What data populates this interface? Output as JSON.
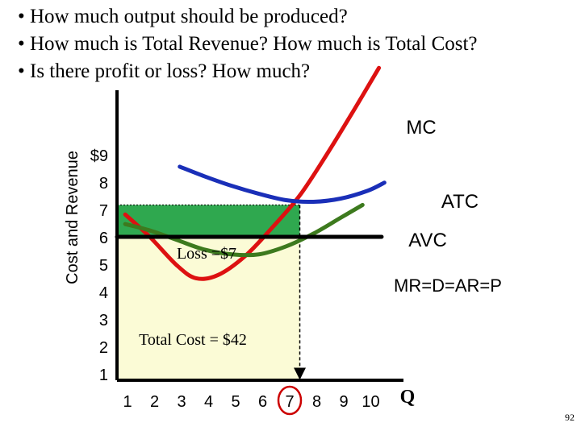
{
  "slide": {
    "bullets": [
      "• How much output should be produced?",
      "• How much is Total Revenue? How much is Total Cost?",
      "• Is there profit or loss? How much?"
    ],
    "page_number": "92"
  },
  "chart_data": {
    "type": "line",
    "ylabel": "Cost and Revenue",
    "xlabel": "Q",
    "x_ticks": [
      "1",
      "2",
      "3",
      "4",
      "5",
      "6",
      "7",
      "8",
      "9",
      "10"
    ],
    "y_ticks": [
      "$9",
      "8",
      "7",
      "6",
      "5",
      "4",
      "3",
      "2",
      "1"
    ],
    "xlim": [
      0.3,
      10.8
    ],
    "ylim": [
      0.5,
      9.6
    ],
    "optimal_quantity": 7,
    "price": 5,
    "series": [
      {
        "name": "MC",
        "color": "#dd1111",
        "points": [
          [
            0.6,
            5.7
          ],
          [
            1.5,
            5.0
          ],
          [
            2.5,
            4.1
          ],
          [
            3.2,
            3.7
          ],
          [
            4.0,
            3.8
          ],
          [
            5.0,
            4.4
          ],
          [
            6.0,
            5.3
          ],
          [
            7.0,
            6.3
          ],
          [
            8.0,
            7.6
          ],
          [
            9.0,
            9.0
          ],
          [
            9.9,
            10.3
          ]
        ]
      },
      {
        "name": "ATC",
        "color": "#1a2fb8",
        "points": [
          [
            2.6,
            7.2
          ],
          [
            3.5,
            6.9
          ],
          [
            4.5,
            6.6
          ],
          [
            5.5,
            6.35
          ],
          [
            6.5,
            6.15
          ],
          [
            7.5,
            6.1
          ],
          [
            8.5,
            6.2
          ],
          [
            9.5,
            6.45
          ],
          [
            10.1,
            6.7
          ]
        ]
      },
      {
        "name": "AVC",
        "color": "#3d7a1e",
        "points": [
          [
            0.6,
            5.4
          ],
          [
            1.5,
            5.2
          ],
          [
            2.5,
            4.9
          ],
          [
            3.5,
            4.6
          ],
          [
            4.5,
            4.45
          ],
          [
            5.5,
            4.45
          ],
          [
            6.5,
            4.7
          ],
          [
            7.5,
            5.1
          ],
          [
            8.5,
            5.6
          ],
          [
            9.3,
            6.0
          ]
        ]
      },
      {
        "name": "MR=D=AR=P",
        "color": "#000000",
        "points": [
          [
            0.3,
            5
          ],
          [
            10.0,
            5
          ]
        ]
      }
    ],
    "annotations": {
      "loss_label": "Loss =$7",
      "total_cost_label": "Total Cost = $42",
      "loss_rect": {
        "x": [
          0.3,
          7
        ],
        "y": [
          5,
          6
        ]
      },
      "total_cost_rect": {
        "x": [
          0.3,
          7
        ],
        "y": [
          0.5,
          5
        ]
      }
    },
    "curve_labels": {
      "mc": "MC",
      "atc": "ATC",
      "avc": "AVC",
      "mr": "MR=D=AR=P"
    },
    "colors": {
      "loss_fill": "#2fa84f",
      "total_cost_fill": "#fbfbd6",
      "highlight": "#cc0000"
    }
  }
}
